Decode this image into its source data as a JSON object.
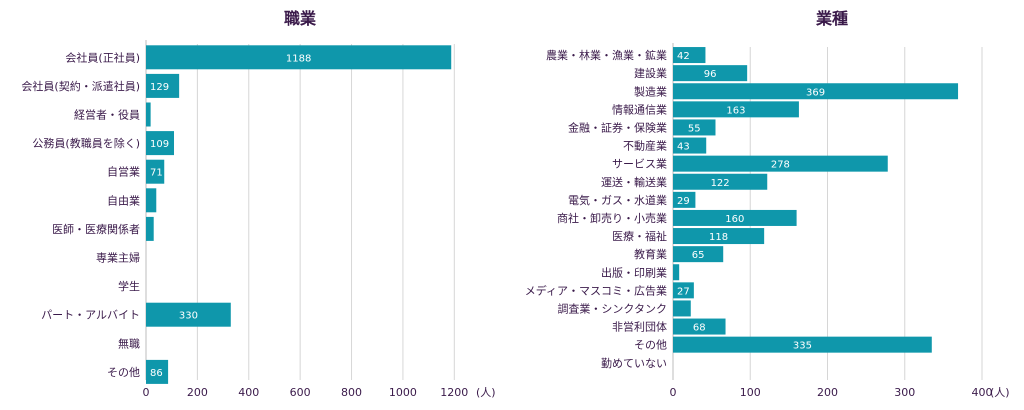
{
  "colors": {
    "bar": "#0f97ab",
    "text": "#3a1a4a",
    "grid": "#d6d6d6"
  },
  "chart_data": [
    {
      "type": "bar",
      "orientation": "horizontal",
      "title": "職業",
      "unit": "(人)",
      "categories": [
        "会社員(正社員)",
        "会社員(契約・派遣社員)",
        "経営者・役員",
        "公務員(教職員を除く)",
        "自営業",
        "自由業",
        "医師・医療関係者",
        "専業主婦",
        "学生",
        "パート・アルバイト",
        "無職",
        "その他"
      ],
      "values": [
        1188,
        129,
        18,
        109,
        71,
        40,
        30,
        0,
        0,
        330,
        0,
        86
      ],
      "labels": [
        "1188",
        "129",
        "",
        "109",
        "71",
        "",
        "",
        "",
        "",
        "330",
        "",
        "86"
      ],
      "xlim": [
        0,
        1300
      ],
      "ticks": [
        "0",
        "200",
        "400",
        "600",
        "800",
        "1000",
        "1200"
      ],
      "grid": true
    },
    {
      "type": "bar",
      "orientation": "horizontal",
      "title": "業種",
      "unit": "(人)",
      "categories": [
        "農業・林業・漁業・鉱業",
        "建設業",
        "製造業",
        "情報通信業",
        "金融・証券・保険業",
        "不動産業",
        "サービス業",
        "運送・輸送業",
        "電気・ガス・水道業",
        "商社・卸売り・小売業",
        "医療・福祉",
        "教育業",
        "出版・印刷業",
        "メディア・マスコミ・広告業",
        "調査業・シンクタンク",
        "非営利団体",
        "その他",
        "勤めていない"
      ],
      "values": [
        42,
        96,
        369,
        163,
        55,
        43,
        278,
        122,
        29,
        160,
        118,
        65,
        8,
        27,
        23,
        68,
        335,
        0
      ],
      "labels": [
        "42",
        "96",
        "369",
        "163",
        "55",
        "43",
        "278",
        "122",
        "29",
        "160",
        "118",
        "65",
        "",
        "27",
        "",
        "68",
        "335",
        ""
      ],
      "xlim": [
        0,
        400
      ],
      "ticks": [
        "0",
        "100",
        "200",
        "300",
        "400"
      ],
      "grid": true
    }
  ]
}
